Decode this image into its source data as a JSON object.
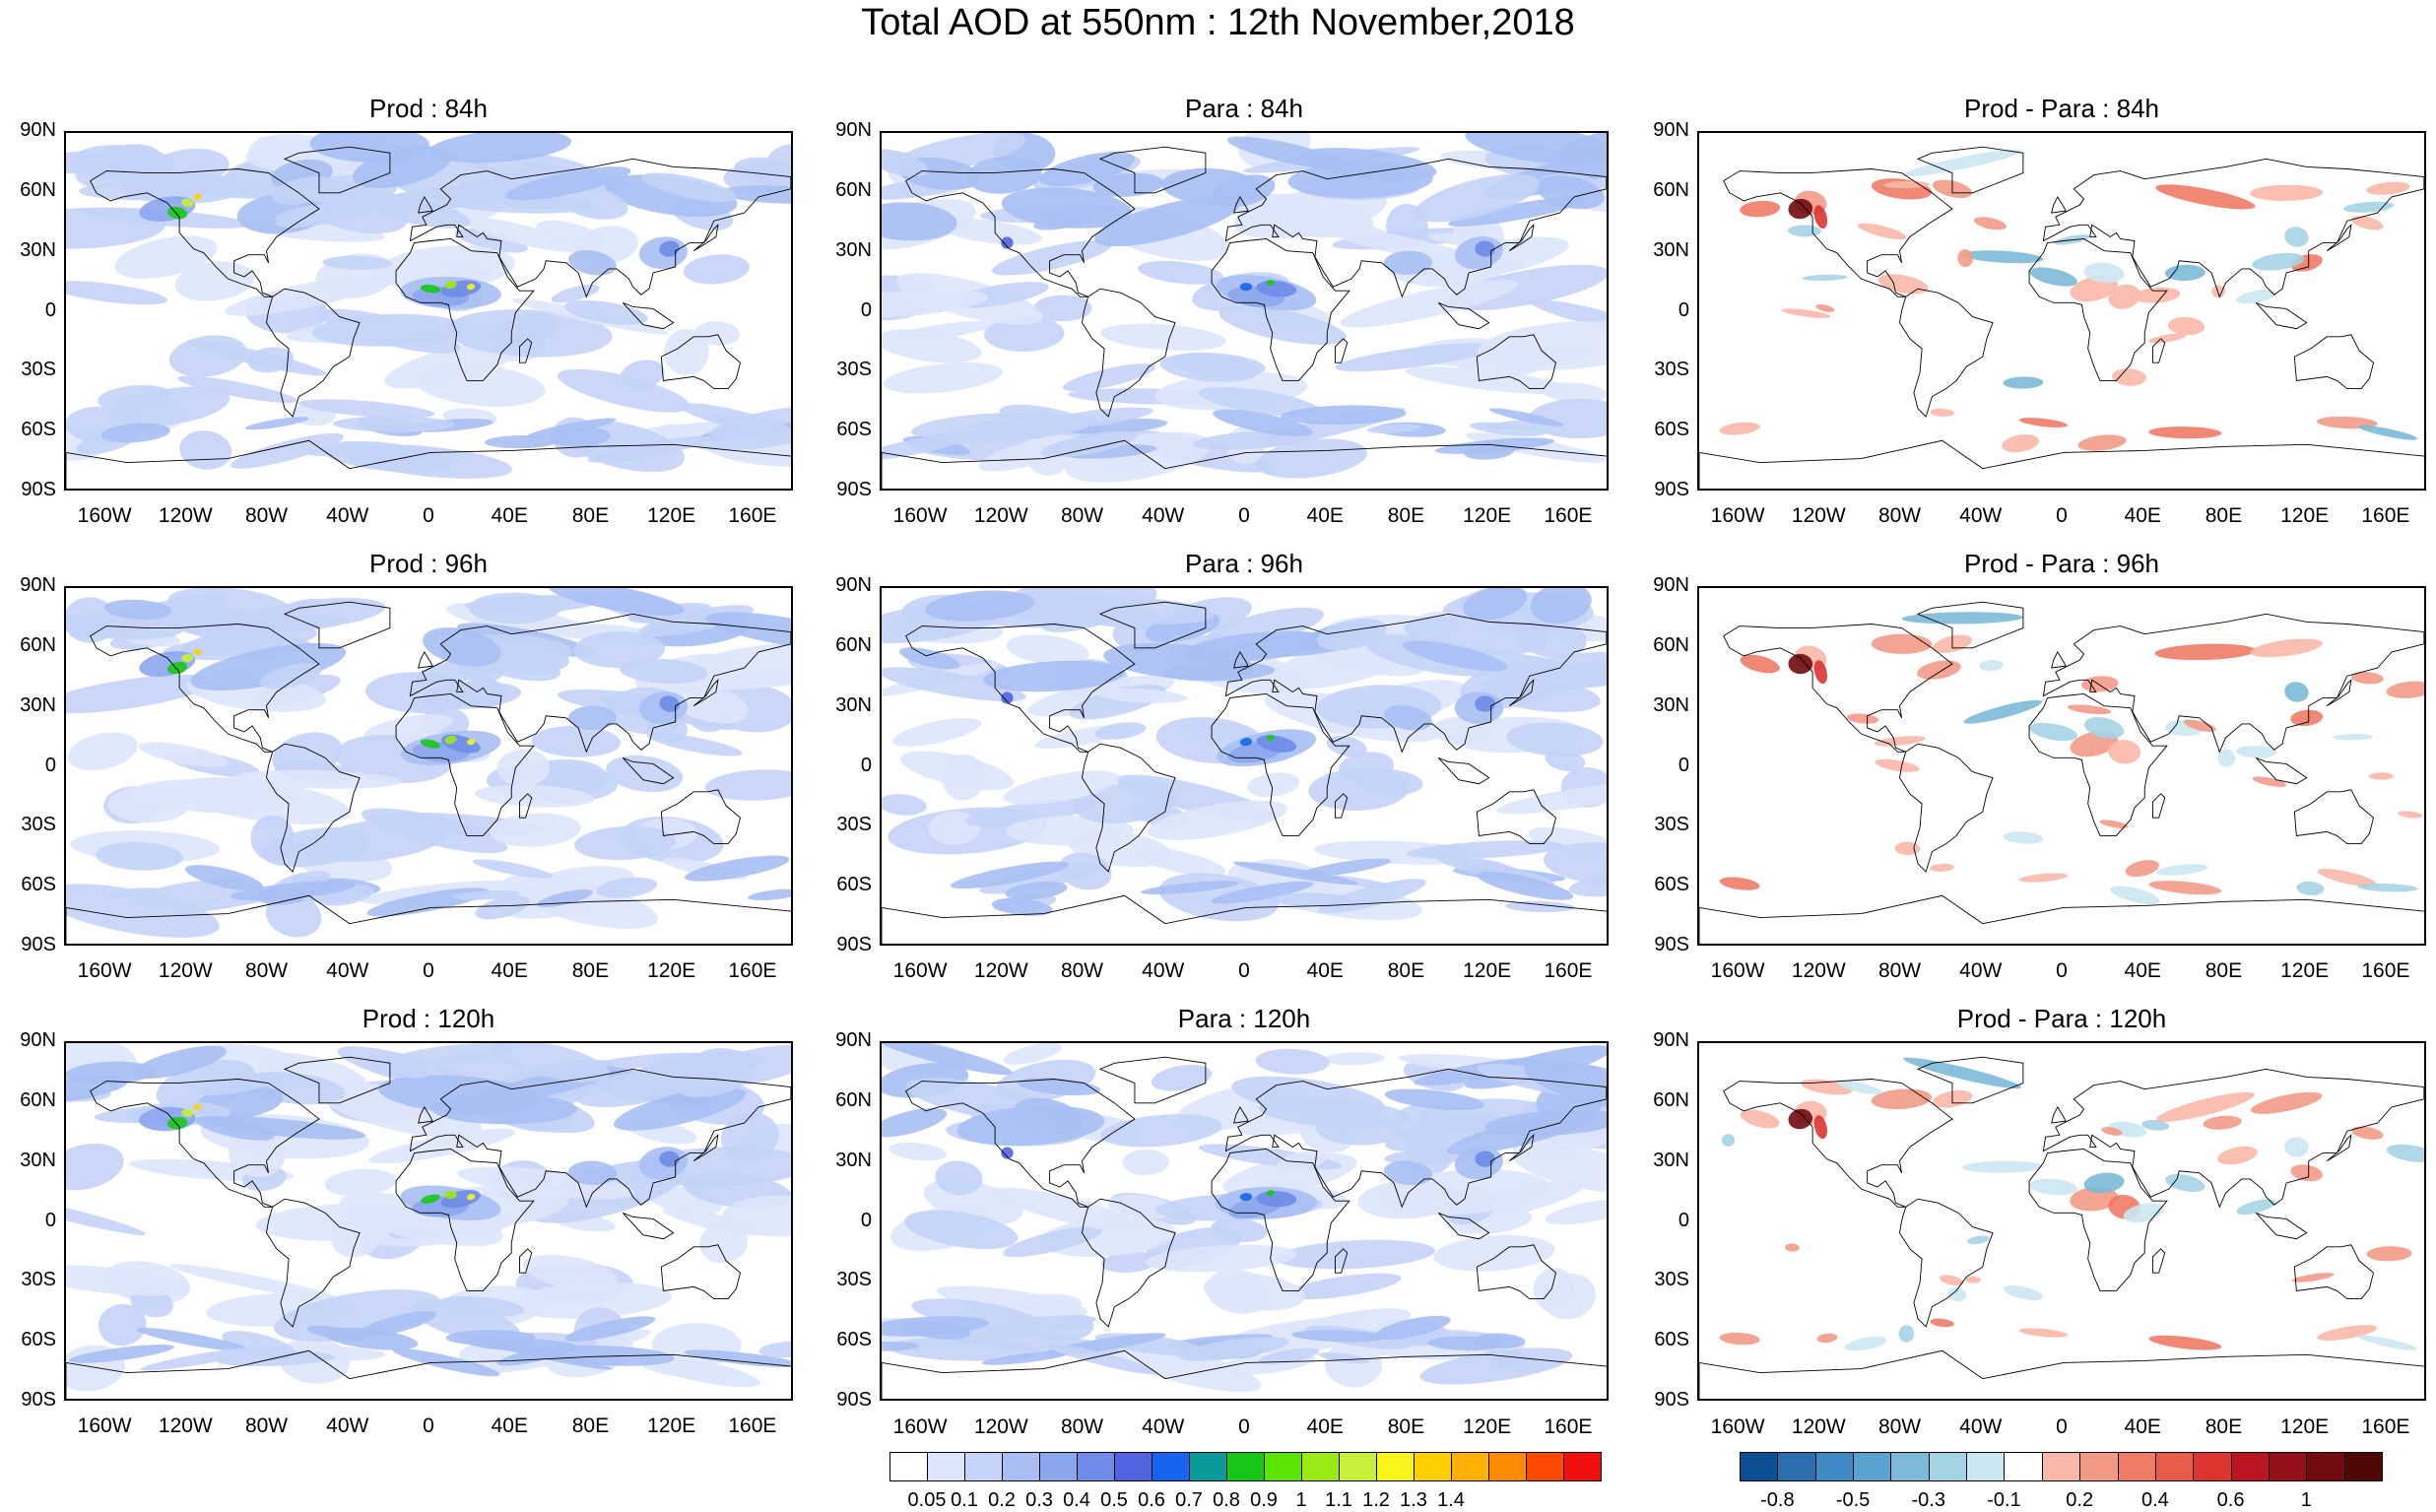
{
  "title": "Total AOD at 550nm : 12th November,2018",
  "lat_labels": [
    "90N",
    "60N",
    "30N",
    "0",
    "30S",
    "60S",
    "90S"
  ],
  "lon_labels": [
    "160W",
    "120W",
    "80W",
    "40W",
    "0",
    "40E",
    "80E",
    "120E",
    "160E"
  ],
  "panels": [
    {
      "title": "Prod : 84h",
      "kind": "aod"
    },
    {
      "title": "Para : 84h",
      "kind": "aod"
    },
    {
      "title": "Prod - Para : 84h",
      "kind": "diff"
    },
    {
      "title": "Prod : 96h",
      "kind": "aod"
    },
    {
      "title": "Para : 96h",
      "kind": "aod"
    },
    {
      "title": "Prod - Para : 96h",
      "kind": "diff"
    },
    {
      "title": "Prod : 120h",
      "kind": "aod"
    },
    {
      "title": "Para : 120h",
      "kind": "aod"
    },
    {
      "title": "Prod - Para : 120h",
      "kind": "diff"
    }
  ],
  "aod_colorbar": {
    "colors": [
      "#ffffff",
      "#dde6fb",
      "#c4d3f7",
      "#a9bff3",
      "#8ca6ee",
      "#6e8be8",
      "#5164e0",
      "#1565f0",
      "#0a9a9a",
      "#18c818",
      "#5ae400",
      "#99ea12",
      "#c8ef3a",
      "#f9f51a",
      "#ffd000",
      "#ffb000",
      "#ff8c00",
      "#ff4a00",
      "#f01010"
    ],
    "labels": [
      "0.05",
      "0.1",
      "0.2",
      "0.3",
      "0.4",
      "0.5",
      "0.6",
      "0.7",
      "0.8",
      "0.9",
      "1",
      "1.1",
      "1.2",
      "1.3",
      "1.4"
    ]
  },
  "diff_colorbar": {
    "colors": [
      "#0c4f92",
      "#2a6fb0",
      "#3e8ac4",
      "#5aa2d0",
      "#7cbad8",
      "#a5d3e6",
      "#cbe7f1",
      "#ffffff",
      "#f9b8a8",
      "#f39a86",
      "#ee7b66",
      "#e85b48",
      "#dc3530",
      "#bb1522",
      "#941019",
      "#6f0b11",
      "#4f0708"
    ],
    "labels": [
      "-0.8",
      "-0.5",
      "-0.3",
      "-0.1",
      "0.2",
      "0.4",
      "0.6",
      "1"
    ]
  }
}
